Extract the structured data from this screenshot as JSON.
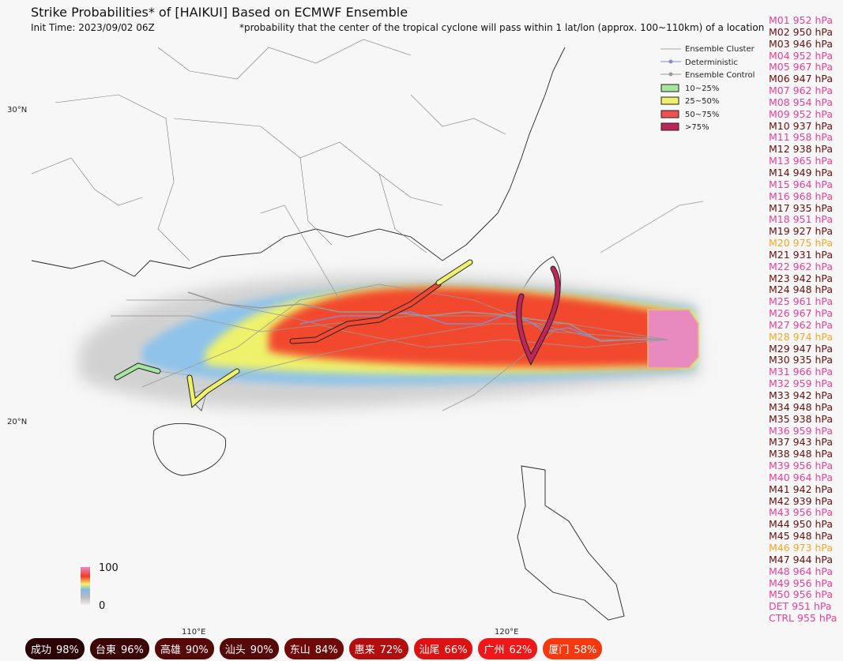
{
  "header": {
    "title": "Strike Probabilities* of [HAIKUI] Based on ECMWF Ensemble",
    "init_time": "Init Time: 2023/09/02 06Z",
    "note": "*probability that the center of the tropical cyclone will pass within 1 lat/lon (approx. 100~110km) of a location"
  },
  "legend": [
    "Ensemble Cluster",
    "Deterministic",
    "Ensemble Control",
    "10~25%",
    "25~50%",
    "50~75%",
    ">75%"
  ],
  "axes": {
    "lat_labels": [
      "30°N",
      "20°N"
    ],
    "lon_labels": [
      "110°E",
      "120°E"
    ]
  },
  "colorbar": {
    "max": "100",
    "min": "0"
  },
  "members": [
    {
      "text": "M01 952 hPa",
      "color": "#ee3d95"
    },
    {
      "text": "M02 950 hPa",
      "color": "#6b0e0e"
    },
    {
      "text": "M03 946 hPa",
      "color": "#6b0e0e"
    },
    {
      "text": "M04 952 hPa",
      "color": "#ee3d95"
    },
    {
      "text": "M05 967 hPa",
      "color": "#ee3d95"
    },
    {
      "text": "M06 947 hPa",
      "color": "#6b0e0e"
    },
    {
      "text": "M07 962 hPa",
      "color": "#ee3d95"
    },
    {
      "text": "M08 954 hPa",
      "color": "#ee3d95"
    },
    {
      "text": "M09 952 hPa",
      "color": "#ee3d95"
    },
    {
      "text": "M10 937 hPa",
      "color": "#6b0e0e"
    },
    {
      "text": "M11 958 hPa",
      "color": "#ee3d95"
    },
    {
      "text": "M12 938 hPa",
      "color": "#6b0e0e"
    },
    {
      "text": "M13 965 hPa",
      "color": "#ee3d95"
    },
    {
      "text": "M14 949 hPa",
      "color": "#6b0e0e"
    },
    {
      "text": "M15 964 hPa",
      "color": "#ee3d95"
    },
    {
      "text": "M16 968 hPa",
      "color": "#ee3d95"
    },
    {
      "text": "M17 935 hPa",
      "color": "#6b0e0e"
    },
    {
      "text": "M18 951 hPa",
      "color": "#ee3d95"
    },
    {
      "text": "M19 927 hPa",
      "color": "#6b0e0e"
    },
    {
      "text": "M20 975 hPa",
      "color": "#f5a623"
    },
    {
      "text": "M21 931 hPa",
      "color": "#6b0e0e"
    },
    {
      "text": "M22 962 hPa",
      "color": "#ee3d95"
    },
    {
      "text": "M23 942 hPa",
      "color": "#6b0e0e"
    },
    {
      "text": "M24 948 hPa",
      "color": "#6b0e0e"
    },
    {
      "text": "M25 961 hPa",
      "color": "#ee3d95"
    },
    {
      "text": "M26 967 hPa",
      "color": "#ee3d95"
    },
    {
      "text": "M27 962 hPa",
      "color": "#ee3d95"
    },
    {
      "text": "M28 974 hPa",
      "color": "#f5a623"
    },
    {
      "text": "M29 947 hPa",
      "color": "#6b0e0e"
    },
    {
      "text": "M30 935 hPa",
      "color": "#6b0e0e"
    },
    {
      "text": "M31 966 hPa",
      "color": "#ee3d95"
    },
    {
      "text": "M32 959 hPa",
      "color": "#ee3d95"
    },
    {
      "text": "M33 942 hPa",
      "color": "#6b0e0e"
    },
    {
      "text": "M34 948 hPa",
      "color": "#6b0e0e"
    },
    {
      "text": "M35 938 hPa",
      "color": "#6b0e0e"
    },
    {
      "text": "M36 959 hPa",
      "color": "#ee3d95"
    },
    {
      "text": "M37 943 hPa",
      "color": "#6b0e0e"
    },
    {
      "text": "M38 948 hPa",
      "color": "#6b0e0e"
    },
    {
      "text": "M39 956 hPa",
      "color": "#ee3d95"
    },
    {
      "text": "M40 964 hPa",
      "color": "#ee3d95"
    },
    {
      "text": "M41 942 hPa",
      "color": "#6b0e0e"
    },
    {
      "text": "M42 939 hPa",
      "color": "#6b0e0e"
    },
    {
      "text": "M43 956 hPa",
      "color": "#ee3d95"
    },
    {
      "text": "M44 950 hPa",
      "color": "#6b0e0e"
    },
    {
      "text": "M45 948 hPa",
      "color": "#6b0e0e"
    },
    {
      "text": "M46 973 hPa",
      "color": "#f5a623"
    },
    {
      "text": "M47 944 hPa",
      "color": "#6b0e0e"
    },
    {
      "text": "M48 964 hPa",
      "color": "#ee3d95"
    },
    {
      "text": "M49 956 hPa",
      "color": "#ee3d95"
    },
    {
      "text": "M50 956 hPa",
      "color": "#ee3d95"
    },
    {
      "text": "DET 951 hPa",
      "color": "#ee3d95"
    },
    {
      "text": "CTRL 955 hPa",
      "color": "#ee3d95"
    }
  ],
  "cities": [
    {
      "name": "成功",
      "prob": "98%",
      "color": "#2a0404"
    },
    {
      "name": "台東",
      "prob": "96%",
      "color": "#3a0606"
    },
    {
      "name": "高雄",
      "prob": "90%",
      "color": "#560909"
    },
    {
      "name": "汕头",
      "prob": "90%",
      "color": "#560909"
    },
    {
      "name": "东山",
      "prob": "84%",
      "color": "#700a0a"
    },
    {
      "name": "惠来",
      "prob": "72%",
      "color": "#b30e0e"
    },
    {
      "name": "汕尾",
      "prob": "66%",
      "color": "#dc1212"
    },
    {
      "name": "广州",
      "prob": "62%",
      "color": "#ef1717"
    },
    {
      "name": "厦门",
      "prob": "58%",
      "color": "#f5380f"
    }
  ]
}
